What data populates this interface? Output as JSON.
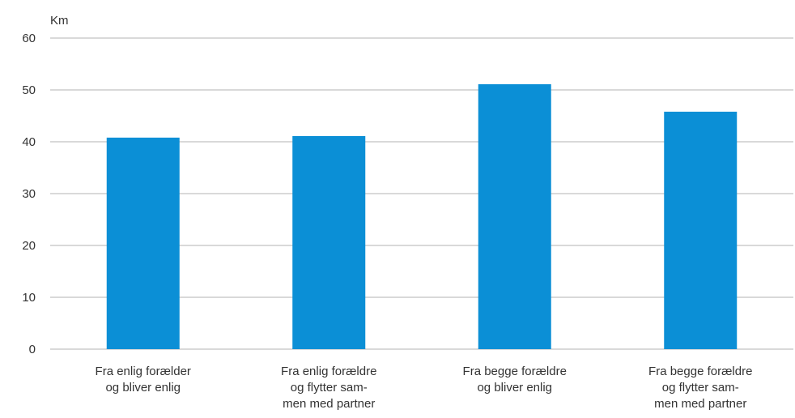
{
  "chart_data": {
    "type": "bar",
    "title": "",
    "ylabel": "Km",
    "xlabel": "",
    "ylim": [
      0,
      60
    ],
    "yticks": [
      0,
      10,
      20,
      30,
      40,
      50,
      60
    ],
    "grid": true,
    "categories": [
      [
        "Fra enlig forælder",
        "og bliver enlig"
      ],
      [
        "Fra enlig forældre",
        "og flytter sam-",
        "men med partner"
      ],
      [
        "Fra begge forældre",
        "og bliver enlig"
      ],
      [
        "Fra begge forældre",
        "og flytter sam-",
        "men med partner"
      ]
    ],
    "values": [
      40.8,
      41.1,
      51.1,
      45.8
    ],
    "colors": {
      "bar": "#0b8fd6",
      "grid": "#b3b3b3",
      "text": "#333333"
    }
  }
}
